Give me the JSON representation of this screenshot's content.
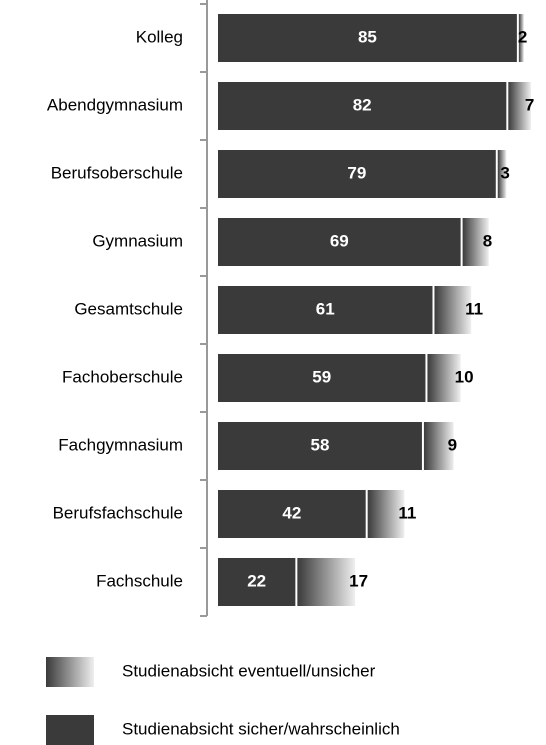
{
  "chart_data": {
    "type": "stacked-bar-horizontal",
    "categories": [
      "Kolleg",
      "Abendgymnasium",
      "Berufsoberschule",
      "Gymnasium",
      "Gesamtschule",
      "Fachoberschule",
      "Fachgymnasium",
      "Berufsfachschule",
      "Fachschule"
    ],
    "series": [
      {
        "name": "Studienabsicht sicher/wahrscheinlich",
        "color": "#3a3a3a",
        "values": [
          85,
          82,
          79,
          69,
          61,
          59,
          58,
          42,
          22
        ]
      },
      {
        "name": "Studienabsicht eventuell/unsicher",
        "color": "#efefef",
        "gradient_from": "#3a3a3a",
        "values": [
          2,
          7,
          3,
          8,
          11,
          10,
          9,
          11,
          17
        ]
      }
    ],
    "xlim": [
      0,
      93
    ]
  }
}
